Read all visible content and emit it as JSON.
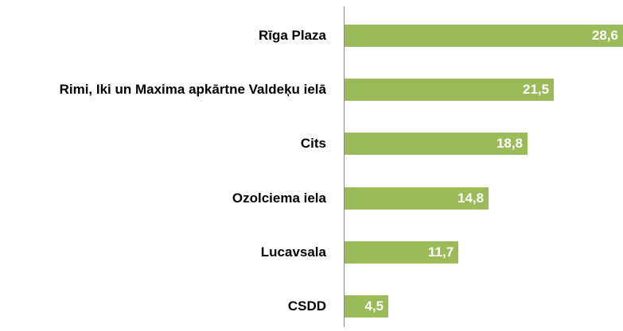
{
  "chart_data": {
    "type": "hbar",
    "categories": [
      "Rīga Plaza",
      "Rimi, Iki un Maxima apkārtne Valdeķu ielā",
      "Cits",
      "Ozolciema iela",
      "Lucavsala",
      "CSDD"
    ],
    "values": [
      28.6,
      21.5,
      18.8,
      14.8,
      11.7,
      4.5
    ],
    "value_labels": [
      "28,6",
      "21,5",
      "18,8",
      "14,8",
      "11,7",
      "4,5"
    ],
    "color": "#9bbb59"
  }
}
